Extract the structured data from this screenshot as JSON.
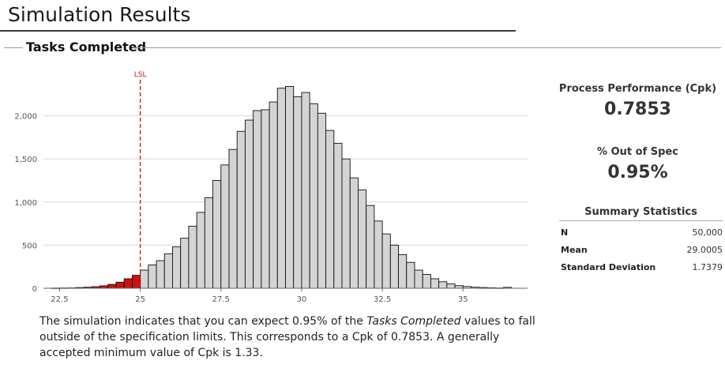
{
  "page_title": "Simulation Results",
  "section_title": "Tasks Completed",
  "chart_data": {
    "type": "bar",
    "title": "Tasks Completed",
    "xlabel": "",
    "ylabel": "",
    "xlim": [
      22,
      37
    ],
    "ylim": [
      0,
      2500
    ],
    "x_ticks": [
      22.5,
      25,
      27.5,
      30,
      32.5,
      35
    ],
    "x_tick_labels": [
      "22.5",
      "25",
      "27.5",
      "30",
      "32.5",
      "35"
    ],
    "y_ticks": [
      0,
      500,
      1000,
      1500,
      2000
    ],
    "y_tick_labels": [
      "0",
      "500",
      "1,000",
      "1,500",
      "2,000"
    ],
    "grid": true,
    "bin_width": 0.25,
    "bin_starts": [
      22.25,
      22.5,
      22.75,
      23.0,
      23.25,
      23.5,
      23.75,
      24.0,
      24.25,
      24.5,
      24.75,
      25.0,
      25.25,
      25.5,
      25.75,
      26.0,
      26.25,
      26.5,
      26.75,
      27.0,
      27.25,
      27.5,
      27.75,
      28.0,
      28.25,
      28.5,
      28.75,
      29.0,
      29.25,
      29.5,
      29.75,
      30.0,
      30.25,
      30.5,
      30.75,
      31.0,
      31.25,
      31.5,
      31.75,
      32.0,
      32.25,
      32.5,
      32.75,
      33.0,
      33.25,
      33.5,
      33.75,
      34.0,
      34.25,
      34.5,
      34.75,
      35.0,
      35.25,
      35.5,
      35.75,
      36.0,
      36.25
    ],
    "values": [
      2,
      3,
      4,
      8,
      12,
      18,
      28,
      45,
      70,
      110,
      150,
      210,
      270,
      320,
      400,
      480,
      580,
      720,
      880,
      1050,
      1250,
      1430,
      1610,
      1820,
      1950,
      2060,
      2070,
      2160,
      2320,
      2340,
      2220,
      2270,
      2140,
      2030,
      1830,
      1680,
      1500,
      1280,
      1140,
      960,
      780,
      630,
      500,
      390,
      300,
      210,
      160,
      110,
      75,
      50,
      30,
      20,
      12,
      8,
      5,
      3,
      10
    ],
    "colors": {
      "out_of_spec": "#cc1111",
      "in_spec": "#d4d4d4",
      "outline": "#111111",
      "grid": "#d9d9d9",
      "lsl_line": "#cc1111"
    },
    "lsl": 25,
    "lsl_label": "LSL"
  },
  "metrics": {
    "cpk_label": "Process Performance (Cpk)",
    "cpk_value": "0.7853",
    "oos_label": "% Out of Spec",
    "oos_value": "0.95%"
  },
  "summary": {
    "title": "Summary Statistics",
    "rows": [
      {
        "label": "N",
        "value": "50,000"
      },
      {
        "label": "Mean",
        "value": "29.0005"
      },
      {
        "label": "Standard Deviation",
        "value": "1.7379"
      }
    ]
  },
  "description": {
    "part1": "The simulation indicates that you can expect 0.95% of the ",
    "emphasis": "Tasks Completed",
    "part2": " values to fall outside of the specification limits. This corresponds to a Cpk of 0.7853. A generally accepted minimum value of Cpk is 1.33."
  }
}
